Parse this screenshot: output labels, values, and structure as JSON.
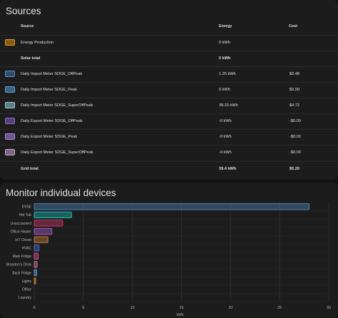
{
  "sources": {
    "title": "Sources",
    "columns": {
      "source": "Source",
      "energy": "Energy",
      "cost": "Cost"
    },
    "rows": [
      {
        "name": "Energy Production",
        "energy": "0 kWh",
        "cost": "",
        "color": "#e09b2a",
        "fill": "#8a5a14",
        "total": false
      },
      {
        "name": "Solar total",
        "energy": "0 kWh",
        "cost": "",
        "color": "",
        "fill": "",
        "total": true
      },
      {
        "name": "Daily Import Meter SDGE_OffPeak",
        "energy": "1.25 kWh",
        "cost": "$0.48",
        "color": "#5f8fbf",
        "fill": "#2f4d6e",
        "total": false
      },
      {
        "name": "Daily Import Meter SDGE_Peak",
        "energy": "0 kWh",
        "cost": "$0.00",
        "color": "#6e9cd0",
        "fill": "#3a5f88",
        "total": false
      },
      {
        "name": "Daily Import Meter SDGE_SuperOffPeak",
        "energy": "38.15 kWh",
        "cost": "$4.72",
        "color": "#9fc8d8",
        "fill": "#5b7f8c",
        "total": false
      },
      {
        "name": "Daily Export Meter SDGE_OffPeak",
        "energy": "-0 kWh",
        "cost": "-$0.00",
        "color": "#8d6bbf",
        "fill": "#573f7d",
        "total": false
      },
      {
        "name": "Daily Export Meter SDGE_Peak",
        "energy": "-0 kWh",
        "cost": "-$0.00",
        "color": "#a68ad0",
        "fill": "#6b5591",
        "total": false
      },
      {
        "name": "Daily Export Meter SDGE_SuperOffPeak",
        "energy": "-0 kWh",
        "cost": "-$0.00",
        "color": "#c4a8cc",
        "fill": "#7d6584",
        "total": false
      },
      {
        "name": "Grid total",
        "energy": "39.4 kWh",
        "cost": "$5.20",
        "color": "",
        "fill": "",
        "total": true
      }
    ]
  },
  "devices": {
    "title": "Monitor individual devices"
  },
  "chart_data": {
    "type": "bar",
    "orientation": "horizontal",
    "categories": [
      "EVSE",
      "Hot Tub",
      "Unaccounted",
      "Office Heater",
      "IoT Closet",
      "HVAC",
      "Main Fridge",
      "Brandon's Desk",
      "Back Fridge",
      "Lights",
      "Office",
      "Laundry"
    ],
    "values": [
      28.0,
      3.8,
      2.9,
      1.8,
      1.4,
      0.5,
      0.4,
      0.3,
      0.25,
      0.15,
      0.0,
      0.0
    ],
    "colors": [
      "#4f7fb0",
      "#1fb6b0",
      "#c03a63",
      "#9f5ac4",
      "#c07a3a",
      "#4f68c4",
      "#d0508c",
      "#c07aa0",
      "#6a9ad0",
      "#d08a30",
      "#888888",
      "#888888"
    ],
    "xlabel": "kWh",
    "xlim": [
      0,
      30
    ],
    "xticks": [
      "0",
      "5",
      "10",
      "15",
      "20",
      "25",
      "30"
    ],
    "grid": true
  }
}
